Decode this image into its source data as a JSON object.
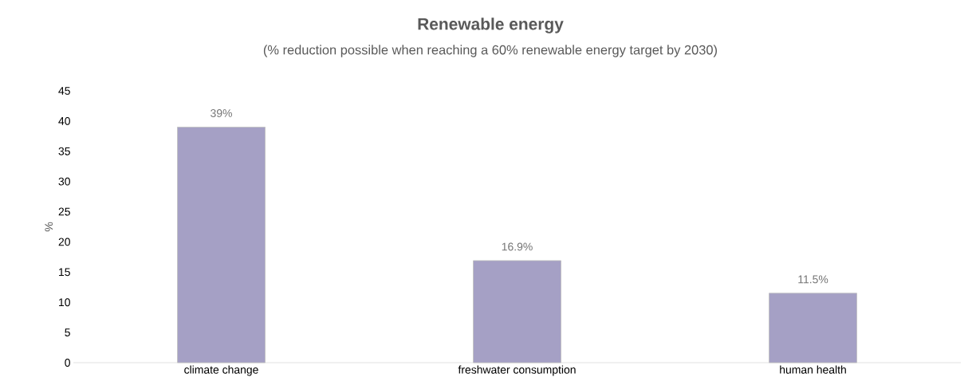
{
  "chart_data": {
    "type": "bar",
    "title": "Renewable energy",
    "subtitle": "(% reduction possible when reaching a 60% renewable energy target by 2030)",
    "ylabel": "%",
    "categories": [
      "climate change",
      "freshwater consumption",
      "human health"
    ],
    "values": [
      39,
      16.9,
      11.5
    ],
    "value_labels": [
      "39%",
      "16.9%",
      "11.5%"
    ],
    "color": "#a5a0c5",
    "ylim": [
      0,
      45
    ],
    "yticks": [
      0,
      5,
      10,
      15,
      20,
      25,
      30,
      35,
      40,
      45
    ],
    "grid": false
  }
}
